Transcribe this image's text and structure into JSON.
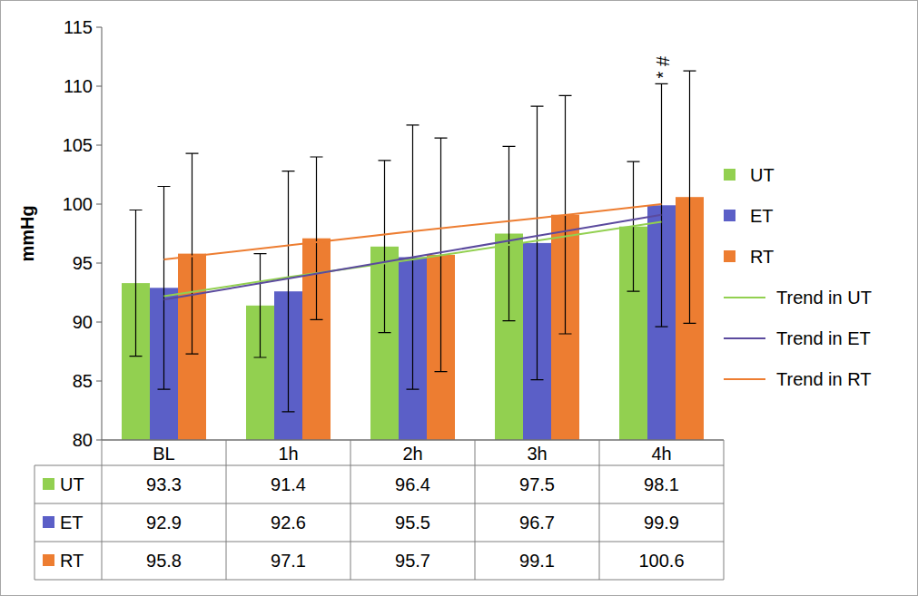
{
  "chart_data": {
    "type": "bar",
    "y_label": "mmHg",
    "categories": [
      "BL",
      "1h",
      "2h",
      "3h",
      "4h"
    ],
    "series": [
      {
        "name": "UT",
        "color": "#92d050",
        "values": [
          93.3,
          91.4,
          96.4,
          97.5,
          98.1
        ],
        "errors": [
          6.2,
          4.4,
          7.3,
          7.4,
          5.5
        ]
      },
      {
        "name": "ET",
        "color": "#5b5fc7",
        "values": [
          92.9,
          92.6,
          95.5,
          96.7,
          99.9
        ],
        "errors": [
          8.6,
          10.2,
          11.2,
          11.6,
          10.3
        ]
      },
      {
        "name": "RT",
        "color": "#ed7d31",
        "values": [
          95.8,
          97.1,
          95.7,
          99.1,
          100.6
        ],
        "errors": [
          8.5,
          6.9,
          9.9,
          10.1,
          10.7
        ]
      },
      {
        "name": "Trend in UT",
        "type": "line",
        "line_style": "solid",
        "color": "#92d050",
        "values": [
          92.2,
          93.8,
          95.3,
          96.9,
          98.5
        ]
      },
      {
        "name": "Trend in ET",
        "type": "line",
        "line_style": "solid",
        "color": "#5b4a9e",
        "values": [
          91.9,
          93.7,
          95.5,
          97.3,
          99.1
        ]
      },
      {
        "name": "Trend in RT",
        "type": "line",
        "line_style": "solid",
        "color": "#ed7d31",
        "values": [
          95.3,
          96.5,
          97.7,
          98.8,
          100.0
        ]
      }
    ],
    "ylim": [
      80,
      115
    ],
    "yticks": [
      80,
      85,
      90,
      95,
      100,
      105,
      110,
      115
    ],
    "grid": false,
    "legend": "right",
    "annotations": [
      {
        "text": "* #",
        "x": "4h",
        "series": "ET"
      }
    ]
  }
}
